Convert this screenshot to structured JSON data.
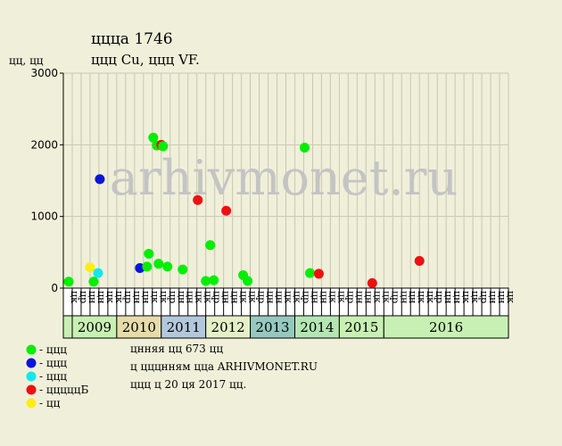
{
  "title_line1": "ццца 1746",
  "title_line2": "ццц Cu, ццц VF.",
  "y_unit_label": "цц, цц",
  "watermark": "arhivmonet.ru",
  "footer": {
    "line1": "цнняя цц 673 цц",
    "line2": "ц цццнням цца ARHIVMONET.RU",
    "line3": "ццц ц 20 ця 2017 цц."
  },
  "legend": [
    {
      "label": "- ццц",
      "color": "#00ee00"
    },
    {
      "label": "- ццц",
      "color": "#0a14dc"
    },
    {
      "label": "- ццц",
      "color": "#10e8ee"
    },
    {
      "label": "- цццццБ",
      "color": "#ee1010"
    },
    {
      "label": "- цц",
      "color": "#ffee10"
    }
  ],
  "colors": {
    "background": "#f0f0da",
    "plot_bg": "#f0f0da",
    "grid": "#c8c8b0",
    "watermark": "#c8c8c8"
  },
  "chart_data": {
    "type": "scatter",
    "ylim": [
      0,
      3000
    ],
    "yticks": [
      0,
      1000,
      2000,
      3000
    ],
    "grid": true,
    "legend_position": "bottom-left",
    "period_labels": [
      "цк",
      "цр",
      "цн",
      "цн",
      "цк",
      "цк",
      "цр",
      "цн",
      "цн",
      "цк",
      "цк",
      "цр",
      "цн",
      "цн",
      "цк",
      "цк",
      "цр",
      "цн",
      "цн",
      "цк",
      "цк",
      "цр",
      "цн",
      "цн",
      "цк",
      "цк",
      "цр",
      "цн",
      "цн",
      "цк",
      "цк",
      "цр",
      "цн",
      "цн",
      "цк",
      "цк",
      "цр",
      "цн",
      "цн",
      "цк",
      "цк",
      "цр",
      "цн",
      "цн",
      "цк",
      "цк",
      "цр",
      "цн",
      "цн",
      "цк"
    ],
    "years": [
      {
        "label": "2009",
        "color": "#c8f0b4"
      },
      {
        "label": "2010",
        "color": "#e6dcaa"
      },
      {
        "label": "2011",
        "color": "#b4c8dc"
      },
      {
        "label": "2012",
        "color": "#e6f0c8"
      },
      {
        "label": "2013",
        "color": "#96c8c0"
      },
      {
        "label": "2014",
        "color": "#b4e6b4"
      },
      {
        "label": "2015",
        "color": "#c8f0b4"
      },
      {
        "label": "2016",
        "color": "#c8f0b4"
      }
    ],
    "points": [
      {
        "x": 0.6,
        "y": 90,
        "c": "#00ee00"
      },
      {
        "x": 3.0,
        "y": 290,
        "c": "#ffee10"
      },
      {
        "x": 3.4,
        "y": 90,
        "c": "#00ee00"
      },
      {
        "x": 3.9,
        "y": 210,
        "c": "#10e8ee"
      },
      {
        "x": 4.1,
        "y": 1520,
        "c": "#0a14dc"
      },
      {
        "x": 8.6,
        "y": 280,
        "c": "#0a14dc"
      },
      {
        "x": 9.4,
        "y": 300,
        "c": "#00ee00"
      },
      {
        "x": 9.6,
        "y": 480,
        "c": "#00ee00"
      },
      {
        "x": 10.1,
        "y": 2100,
        "c": "#00ee00"
      },
      {
        "x": 10.5,
        "y": 1990,
        "c": "#00ee00"
      },
      {
        "x": 10.7,
        "y": 340,
        "c": "#00ee00"
      },
      {
        "x": 11.0,
        "y": 2000,
        "c": "#ee1010"
      },
      {
        "x": 11.2,
        "y": 1980,
        "c": "#00ee00"
      },
      {
        "x": 11.7,
        "y": 300,
        "c": "#00ee00"
      },
      {
        "x": 13.4,
        "y": 260,
        "c": "#00ee00"
      },
      {
        "x": 15.1,
        "y": 1230,
        "c": "#ee1010"
      },
      {
        "x": 16.0,
        "y": 100,
        "c": "#00ee00"
      },
      {
        "x": 16.5,
        "y": 600,
        "c": "#00ee00"
      },
      {
        "x": 16.9,
        "y": 110,
        "c": "#00ee00"
      },
      {
        "x": 18.3,
        "y": 1080,
        "c": "#ee1010"
      },
      {
        "x": 20.2,
        "y": 180,
        "c": "#00ee00"
      },
      {
        "x": 20.7,
        "y": 100,
        "c": "#00ee00"
      },
      {
        "x": 27.1,
        "y": 1960,
        "c": "#00ee00"
      },
      {
        "x": 27.7,
        "y": 210,
        "c": "#00ee00"
      },
      {
        "x": 28.7,
        "y": 200,
        "c": "#ee1010"
      },
      {
        "x": 34.7,
        "y": 70,
        "c": "#ee1010"
      },
      {
        "x": 40.0,
        "y": 380,
        "c": "#ee1010"
      }
    ]
  }
}
